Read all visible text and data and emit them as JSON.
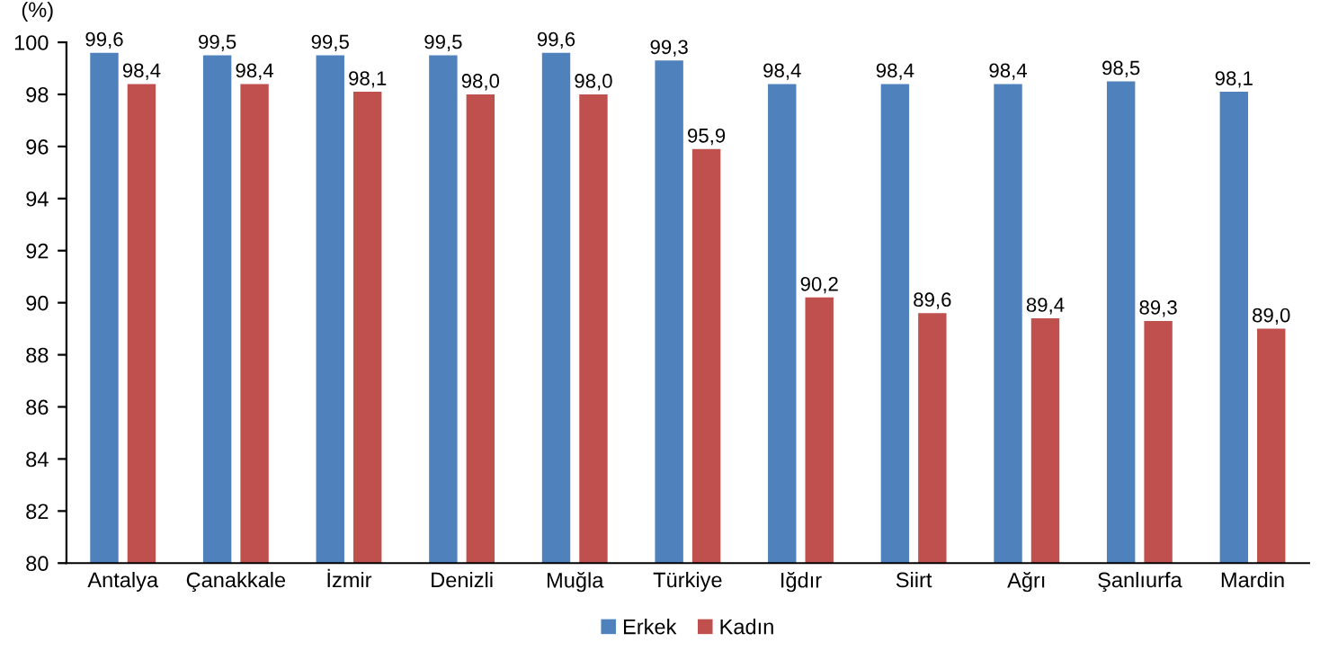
{
  "chart_data": {
    "type": "bar",
    "ylabel": "(%)",
    "categories": [
      "Antalya",
      "Çanakkale",
      "İzmir",
      "Denizli",
      "Muğla",
      "Türkiye",
      "Iğdır",
      "Siirt",
      "Ağrı",
      "Şanlıurfa",
      "Mardin"
    ],
    "series": [
      {
        "name": "Erkek",
        "color": "#4f81bd",
        "values": [
          99.6,
          99.5,
          99.5,
          99.5,
          99.6,
          99.3,
          98.4,
          98.4,
          98.4,
          98.5,
          98.1
        ],
        "value_labels": [
          "99,6",
          "99,5",
          "99,5",
          "99,5",
          "99,6",
          "99,3",
          "98,4",
          "98,4",
          "98,4",
          "98,5",
          "98,1"
        ]
      },
      {
        "name": "Kadın",
        "color": "#c0504d",
        "values": [
          98.4,
          98.4,
          98.1,
          98.0,
          98.0,
          95.9,
          90.2,
          89.6,
          89.4,
          89.3,
          89.0
        ],
        "value_labels": [
          "98,4",
          "98,4",
          "98,1",
          "98,0",
          "98,0",
          "95,9",
          "90,2",
          "89,6",
          "89,4",
          "89,3",
          "89,0"
        ]
      }
    ],
    "ylim": [
      80,
      100
    ],
    "yticks": [
      80,
      82,
      84,
      86,
      88,
      90,
      92,
      94,
      96,
      98,
      100
    ],
    "grid": false,
    "legend": "bottom"
  }
}
